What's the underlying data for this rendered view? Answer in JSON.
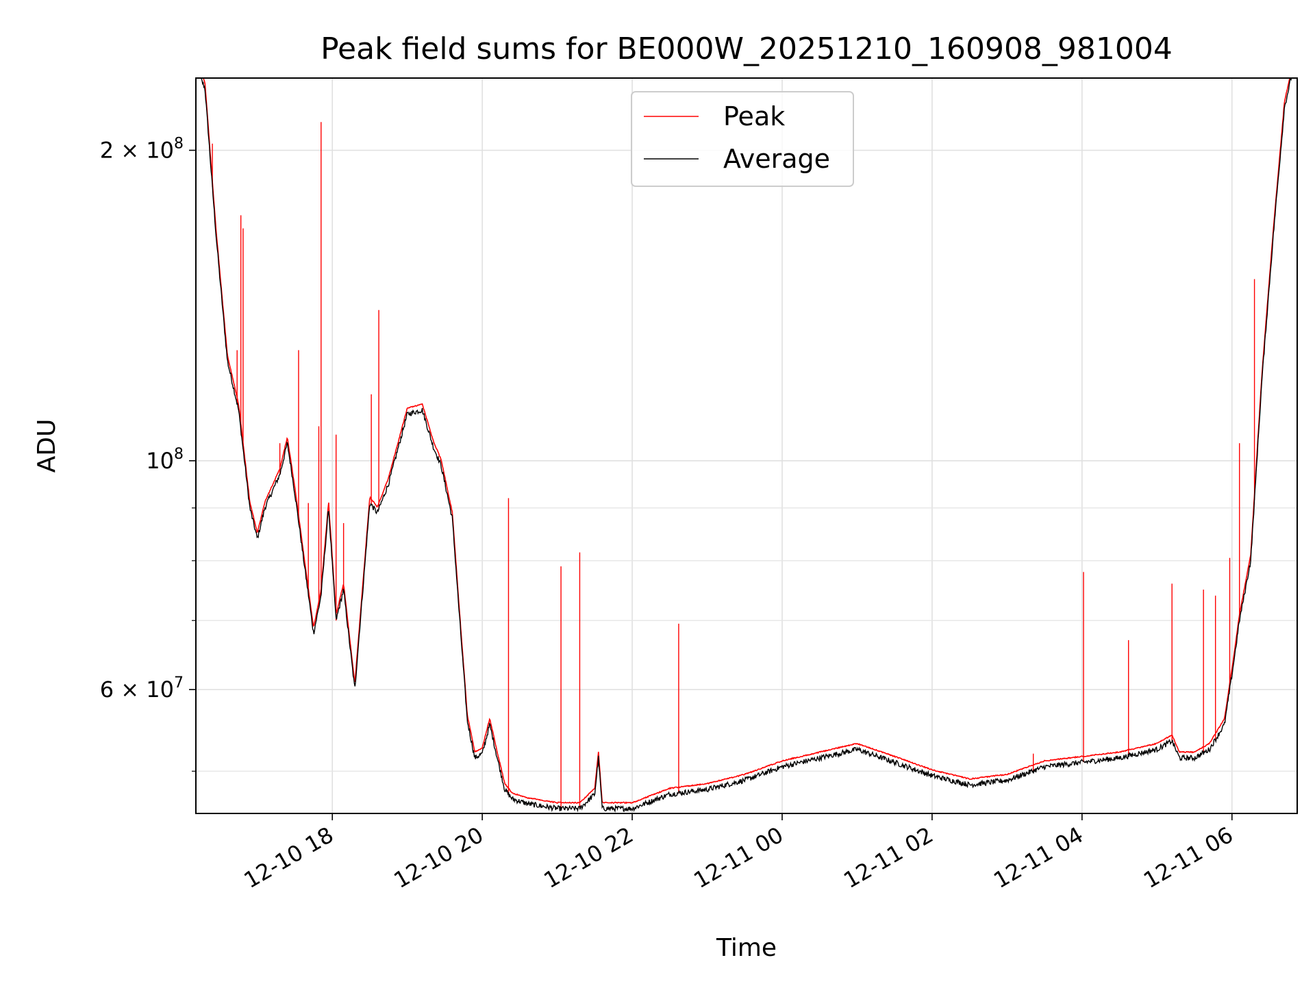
{
  "chart_data": {
    "type": "line",
    "title": "Peak field sums for BE000W_20251210_160908_981004",
    "xlabel": "Time",
    "ylabel": "ADU",
    "yscale": "log",
    "xlim": [
      16.18,
      30.87
    ],
    "ylim": [
      45500000,
      235000000
    ],
    "x_tick_values": [
      18,
      20,
      22,
      24,
      26,
      28,
      30
    ],
    "x_tick_labels": [
      "12-10 18",
      "12-10 20",
      "12-10 22",
      "12-11 00",
      "12-11 02",
      "12-11 04",
      "12-11 06"
    ],
    "y_major_ticks": [
      {
        "value": 200000000,
        "mantissa": "2",
        "exponent": "8"
      },
      {
        "value": 100000000,
        "mantissa": "",
        "exponent": "8"
      },
      {
        "value": 60000000,
        "mantissa": "6",
        "exponent": "7"
      }
    ],
    "y_minor_gridlines": [
      50000000,
      70000000,
      80000000,
      90000000
    ],
    "legend_position": "upper-center",
    "grid": true,
    "series": [
      {
        "name": "Peak",
        "color": "#ff0000"
      },
      {
        "name": "Average",
        "color": "#000000"
      }
    ],
    "average_curve": {
      "x": [
        16.18,
        16.3,
        16.45,
        16.6,
        16.75,
        16.9,
        17.0,
        17.1,
        17.3,
        17.4,
        17.5,
        17.65,
        17.75,
        17.85,
        17.95,
        18.05,
        18.15,
        18.3,
        18.5,
        18.6,
        18.75,
        19.0,
        19.2,
        19.35,
        19.45,
        19.6,
        19.7,
        19.8,
        19.9,
        20.0,
        20.1,
        20.2,
        20.3,
        20.4,
        20.6,
        21.0,
        21.3,
        21.5,
        21.55,
        21.6,
        21.7,
        22.0,
        22.5,
        23.0,
        23.5,
        24.0,
        24.5,
        25.0,
        25.5,
        26.0,
        26.5,
        27.0,
        27.5,
        28.0,
        28.5,
        29.0,
        29.2,
        29.3,
        29.5,
        29.7,
        29.9,
        30.0,
        30.1,
        30.25,
        30.4,
        30.55,
        30.7,
        30.87
      ],
      "y": [
        240000000,
        230000000,
        165000000,
        125000000,
        112000000,
        90000000,
        84000000,
        90000000,
        97000000,
        104000000,
        93000000,
        77000000,
        68000000,
        74000000,
        90000000,
        70000000,
        75000000,
        60000000,
        91000000,
        89000000,
        95000000,
        111000000,
        112000000,
        103000000,
        99000000,
        88000000,
        70000000,
        56000000,
        51500000,
        52000000,
        55500000,
        51500000,
        48000000,
        47000000,
        46500000,
        46000000,
        46000000,
        47500000,
        51500000,
        46000000,
        46000000,
        46000000,
        47500000,
        48000000,
        49000000,
        50500000,
        51500000,
        52500000,
        51000000,
        49500000,
        48500000,
        49000000,
        50500000,
        51000000,
        51500000,
        52500000,
        53500000,
        51500000,
        51500000,
        52500000,
        55500000,
        62000000,
        70000000,
        80000000,
        120000000,
        165000000,
        220000000,
        250000000
      ]
    },
    "peak_spikes": [
      {
        "x": 16.4,
        "y": 203000000
      },
      {
        "x": 16.73,
        "y": 128000000
      },
      {
        "x": 16.78,
        "y": 173000000
      },
      {
        "x": 16.81,
        "y": 168000000
      },
      {
        "x": 17.3,
        "y": 104000000
      },
      {
        "x": 17.55,
        "y": 128000000
      },
      {
        "x": 17.68,
        "y": 91000000
      },
      {
        "x": 17.82,
        "y": 108000000
      },
      {
        "x": 17.85,
        "y": 213000000
      },
      {
        "x": 18.05,
        "y": 106000000
      },
      {
        "x": 18.15,
        "y": 87000000
      },
      {
        "x": 18.52,
        "y": 116000000
      },
      {
        "x": 18.62,
        "y": 140000000
      },
      {
        "x": 20.35,
        "y": 92000000
      },
      {
        "x": 21.05,
        "y": 79000000
      },
      {
        "x": 21.3,
        "y": 81500000
      },
      {
        "x": 22.62,
        "y": 69500000
      },
      {
        "x": 27.35,
        "y": 52000000
      },
      {
        "x": 28.02,
        "y": 78000000
      },
      {
        "x": 28.62,
        "y": 67000000
      },
      {
        "x": 29.2,
        "y": 76000000
      },
      {
        "x": 29.62,
        "y": 75000000
      },
      {
        "x": 29.78,
        "y": 74000000
      },
      {
        "x": 29.97,
        "y": 80500000
      },
      {
        "x": 30.1,
        "y": 104000000
      },
      {
        "x": 30.3,
        "y": 150000000
      }
    ]
  }
}
